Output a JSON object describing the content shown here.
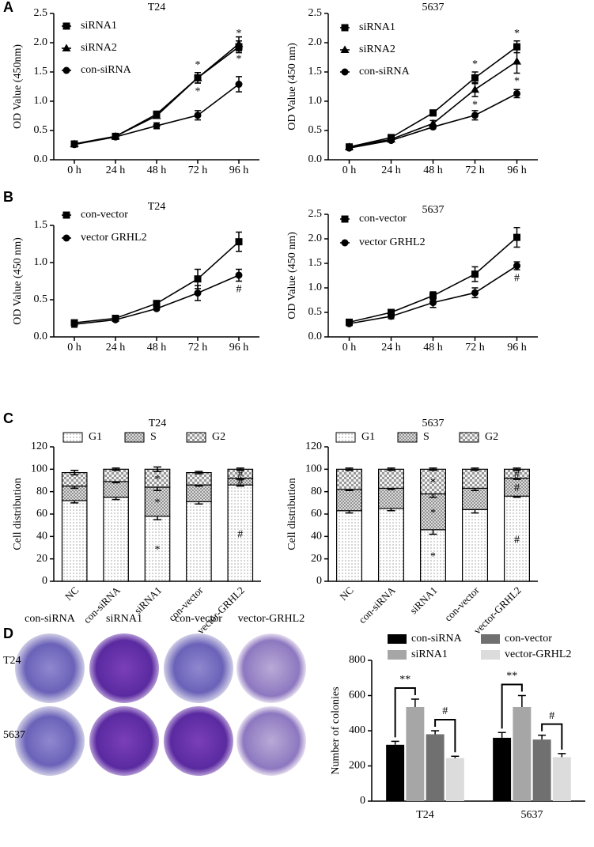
{
  "panel_labels": [
    "A",
    "B",
    "C",
    "D"
  ],
  "colonies": {
    "columns": [
      "con-siRNA",
      "siRNA1",
      "con-vector",
      "vector-GRHL2"
    ],
    "rows": [
      "T24",
      "5637"
    ]
  },
  "chart_data": [
    {
      "type": "line",
      "title": "T24",
      "y_label": "OD Value (450nm)",
      "categories": [
        "0 h",
        "24 h",
        "48 h",
        "72 h",
        "96 h"
      ],
      "ylim": [
        0,
        2.5
      ],
      "yticks": [
        {
          "value": 0,
          "label": "0.0"
        },
        0.5,
        {
          "value": 1,
          "label": "1.0"
        },
        1.5,
        {
          "value": 2,
          "label": "2.0"
        },
        2.5
      ],
      "series": [
        {
          "name": "siRNA1",
          "color": "#000000",
          "marker": "square",
          "values": [
            0.27,
            0.4,
            0.78,
            1.4,
            1.93
          ],
          "errors": [
            0.02,
            0.02,
            0.04,
            0.09,
            0.1
          ],
          "annotations": [
            null,
            null,
            null,
            "*",
            "*"
          ]
        },
        {
          "name": "siRNA2",
          "color": "#000000",
          "marker": "triangle",
          "values": [
            0.27,
            0.4,
            0.75,
            1.4,
            1.98
          ],
          "errors": [
            0.02,
            0.02,
            0.04,
            0.09,
            0.12
          ],
          "annotations": [
            null,
            null,
            null,
            "*",
            "*"
          ]
        },
        {
          "name": "con-siRNA",
          "color": "#000000",
          "marker": "circle",
          "values": [
            0.26,
            0.39,
            0.58,
            0.76,
            1.29
          ],
          "errors": [
            0.02,
            0.02,
            0.05,
            0.08,
            0.13
          ]
        }
      ]
    },
    {
      "type": "line",
      "title": "5637",
      "y_label": "OD Value (450 nm)",
      "categories": [
        "0 h",
        "24 h",
        "48 h",
        "72 h",
        "96 h"
      ],
      "ylim": [
        0,
        2.5
      ],
      "yticks": [
        {
          "value": 0,
          "label": "0.0"
        },
        0.5,
        {
          "value": 1,
          "label": "1.0"
        },
        1.5,
        {
          "value": 2,
          "label": "2.0"
        },
        2.5
      ],
      "series": [
        {
          "name": "siRNA1",
          "color": "#000000",
          "marker": "square",
          "values": [
            0.22,
            0.38,
            0.8,
            1.4,
            1.93
          ],
          "errors": [
            0.02,
            0.03,
            0.05,
            0.1,
            0.1
          ],
          "annotations": [
            null,
            null,
            null,
            "*",
            "*"
          ]
        },
        {
          "name": "siRNA2",
          "color": "#000000",
          "marker": "triangle",
          "values": [
            0.22,
            0.35,
            0.62,
            1.2,
            1.68
          ],
          "errors": [
            0.02,
            0.03,
            0.05,
            0.12,
            0.2
          ],
          "annotations": [
            null,
            null,
            null,
            "*",
            "*"
          ]
        },
        {
          "name": "con-siRNA",
          "color": "#000000",
          "marker": "circle",
          "values": [
            0.2,
            0.33,
            0.56,
            0.76,
            1.13
          ],
          "errors": [
            0.02,
            0.02,
            0.03,
            0.08,
            0.07
          ]
        }
      ]
    },
    {
      "type": "line",
      "title": "T24",
      "y_label": "OD Value (450 nm)",
      "categories": [
        "0 h",
        "24 h",
        "48 h",
        "72 h",
        "96 h"
      ],
      "ylim": [
        0,
        1.5
      ],
      "yticks": [
        {
          "value": 0,
          "label": "0.0"
        },
        0.5,
        {
          "value": 1,
          "label": "1.0"
        },
        1.5
      ],
      "series": [
        {
          "name": "con-vector",
          "color": "#000000",
          "marker": "square",
          "values": [
            0.19,
            0.25,
            0.45,
            0.78,
            1.28
          ],
          "errors": [
            0.03,
            0.02,
            0.02,
            0.13,
            0.13
          ]
        },
        {
          "name": "vector GRHL2",
          "color": "#000000",
          "marker": "circle",
          "values": [
            0.17,
            0.23,
            0.38,
            0.59,
            0.83
          ],
          "errors": [
            0.04,
            0.02,
            0.02,
            0.1,
            0.08
          ],
          "annotations": [
            null,
            null,
            null,
            null,
            "#"
          ]
        }
      ]
    },
    {
      "type": "line",
      "title": "5637",
      "y_label": "OD Value (450 nm)",
      "categories": [
        "0 h",
        "24 h",
        "48 h",
        "72 h",
        "96 h"
      ],
      "ylim": [
        0,
        2.5
      ],
      "yticks": [
        {
          "value": 0,
          "label": "0.0"
        },
        0.5,
        {
          "value": 1,
          "label": "1.0"
        },
        1.5,
        {
          "value": 2,
          "label": "2.0"
        },
        2.5
      ],
      "series": [
        {
          "name": "con-vector",
          "color": "#000000",
          "marker": "square",
          "values": [
            0.3,
            0.5,
            0.84,
            1.28,
            2.03
          ],
          "errors": [
            0.03,
            0.04,
            0.08,
            0.15,
            0.2
          ]
        },
        {
          "name": "vector GRHL2",
          "color": "#000000",
          "marker": "circle",
          "values": [
            0.27,
            0.42,
            0.7,
            0.9,
            1.45
          ],
          "errors": [
            0.04,
            0.05,
            0.1,
            0.1,
            0.08
          ],
          "annotations": [
            null,
            null,
            null,
            null,
            "#"
          ]
        }
      ]
    },
    {
      "type": "stacked_bar",
      "title": "T24",
      "y_label": "Cell distribution",
      "categories": [
        "NC",
        "con-siRNA",
        "siRNA1",
        "con-vector",
        "vector-GRHL2"
      ],
      "ylim": [
        0,
        120
      ],
      "yticks": [
        0,
        20,
        40,
        60,
        80,
        100,
        120
      ],
      "series": [
        {
          "name": "G1",
          "pattern": "dots",
          "values": [
            72,
            75,
            58,
            71,
            86
          ],
          "errors": [
            2,
            2,
            3,
            2,
            1
          ],
          "annotations": [
            null,
            null,
            "*",
            null,
            "#"
          ]
        },
        {
          "name": "S",
          "pattern": "cross",
          "values": [
            13,
            14,
            26,
            15,
            6
          ],
          "errors": [
            2,
            1,
            3,
            1,
            1
          ],
          "annotations": [
            null,
            null,
            "*",
            null,
            "#"
          ]
        },
        {
          "name": "G2",
          "pattern": "checker",
          "values": [
            12,
            11,
            16,
            11,
            8
          ],
          "errors": [
            2,
            1,
            2,
            1,
            1
          ],
          "annotations": [
            null,
            null,
            "*",
            null,
            "#"
          ]
        }
      ]
    },
    {
      "type": "stacked_bar",
      "title": "5637",
      "y_label": "Cell distribution",
      "categories": [
        "NC",
        "con-siRNA",
        "siRNA1",
        "con-vector",
        "vector-GRHL2"
      ],
      "ylim": [
        0,
        120
      ],
      "yticks": [
        0,
        20,
        40,
        60,
        80,
        100,
        120
      ],
      "series": [
        {
          "name": "G1",
          "pattern": "dots",
          "values": [
            63,
            65,
            46,
            64,
            76
          ],
          "errors": [
            2,
            2,
            4,
            3,
            1
          ],
          "annotations": [
            null,
            null,
            "*",
            null,
            "#"
          ]
        },
        {
          "name": "S",
          "pattern": "cross",
          "values": [
            19,
            18,
            32,
            19,
            16
          ],
          "errors": [
            1,
            1,
            3,
            2,
            1
          ],
          "annotations": [
            null,
            null,
            "*",
            null,
            "#"
          ]
        },
        {
          "name": "G2",
          "pattern": "checker",
          "values": [
            18,
            17,
            22,
            17,
            8
          ],
          "errors": [
            1,
            1,
            1,
            1,
            1
          ],
          "annotations": [
            null,
            null,
            "*",
            null,
            "#"
          ]
        }
      ]
    },
    {
      "type": "grouped_bar",
      "y_label": "Number of colonies",
      "categories": [
        "T24",
        "5637"
      ],
      "ylim": [
        0,
        800
      ],
      "yticks": [
        0,
        200,
        400,
        600,
        800
      ],
      "series": [
        {
          "name": "con-siRNA",
          "color": "#000000",
          "values": [
            320,
            360
          ],
          "errors": [
            20,
            30
          ]
        },
        {
          "name": "siRNA1",
          "color": "#a6a6a6",
          "values": [
            535,
            535
          ],
          "errors": [
            45,
            65
          ],
          "annotations": [
            "**",
            "**"
          ]
        },
        {
          "name": "con-vector",
          "color": "#707070",
          "values": [
            380,
            350
          ],
          "errors": [
            20,
            25
          ]
        },
        {
          "name": "vector-GRHL2",
          "color": "#dcdcdc",
          "values": [
            245,
            250
          ],
          "errors": [
            10,
            20
          ],
          "annotations": [
            "#",
            "#"
          ]
        }
      ]
    }
  ]
}
